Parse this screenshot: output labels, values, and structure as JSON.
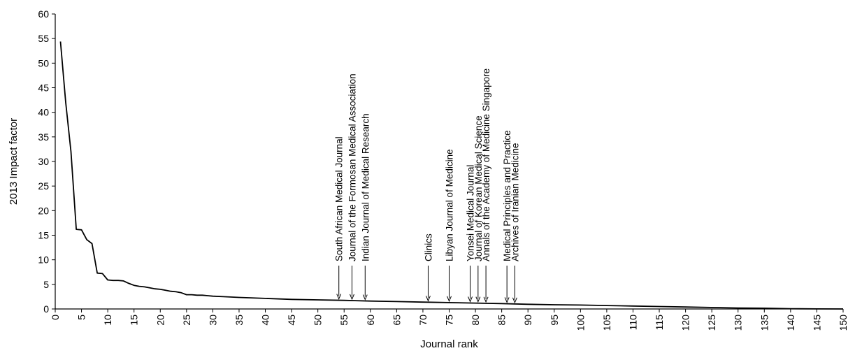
{
  "chart_data": {
    "type": "line",
    "title": "",
    "xlabel": "Journal rank",
    "ylabel": "2013 Impact factor",
    "xlim": [
      0,
      150
    ],
    "ylim": [
      0,
      60
    ],
    "xticks": [
      0,
      5,
      10,
      15,
      20,
      25,
      30,
      35,
      40,
      45,
      50,
      55,
      60,
      65,
      70,
      75,
      80,
      85,
      90,
      95,
      100,
      105,
      110,
      115,
      120,
      125,
      130,
      135,
      140,
      145,
      150
    ],
    "xtick_labels": [
      "0",
      "5",
      "10",
      "15",
      "20",
      "25",
      "30",
      "35",
      "40",
      "45",
      "50",
      "55",
      "60",
      "65",
      "70",
      "75",
      "80",
      "85",
      "90",
      "95",
      "100",
      "105",
      "110",
      "115",
      "120",
      "125",
      "130",
      "135",
      "140",
      "145",
      "150"
    ],
    "yticks": [
      0,
      5,
      10,
      15,
      20,
      25,
      30,
      35,
      40,
      45,
      50,
      55,
      60
    ],
    "ytick_labels": [
      "0",
      "5",
      "10",
      "15",
      "20",
      "25",
      "30",
      "35",
      "40",
      "45",
      "50",
      "55",
      "60"
    ],
    "grid": false,
    "series": [
      {
        "color": "#000000",
        "points": [
          [
            1,
            54.4
          ],
          [
            2,
            42
          ],
          [
            3,
            32
          ],
          [
            4,
            16.2
          ],
          [
            5,
            16.1
          ],
          [
            6,
            14.1
          ],
          [
            7,
            13.3
          ],
          [
            8,
            7.3
          ],
          [
            9,
            7.2
          ],
          [
            10,
            5.9
          ],
          [
            11,
            5.8
          ],
          [
            12,
            5.8
          ],
          [
            13,
            5.7
          ],
          [
            14,
            5.2
          ],
          [
            15,
            4.8
          ],
          [
            16,
            4.6
          ],
          [
            17,
            4.5
          ],
          [
            18,
            4.3
          ],
          [
            19,
            4.1
          ],
          [
            20,
            4.0
          ],
          [
            21,
            3.8
          ],
          [
            22,
            3.6
          ],
          [
            23,
            3.5
          ],
          [
            24,
            3.3
          ],
          [
            25,
            2.9
          ],
          [
            26,
            2.9
          ],
          [
            27,
            2.8
          ],
          [
            28,
            2.8
          ],
          [
            29,
            2.7
          ],
          [
            30,
            2.6
          ],
          [
            32,
            2.5
          ],
          [
            35,
            2.35
          ],
          [
            40,
            2.15
          ],
          [
            45,
            1.95
          ],
          [
            50,
            1.85
          ],
          [
            55,
            1.75
          ],
          [
            60,
            1.6
          ],
          [
            65,
            1.5
          ],
          [
            70,
            1.4
          ],
          [
            75,
            1.3
          ],
          [
            80,
            1.2
          ],
          [
            85,
            1.1
          ],
          [
            90,
            0.95
          ],
          [
            95,
            0.85
          ],
          [
            100,
            0.8
          ],
          [
            105,
            0.7
          ],
          [
            110,
            0.6
          ],
          [
            115,
            0.5
          ],
          [
            120,
            0.4
          ],
          [
            125,
            0.3
          ],
          [
            130,
            0.2
          ],
          [
            135,
            0.15
          ],
          [
            140,
            0.05
          ],
          [
            145,
            0.02
          ],
          [
            150,
            0.0
          ]
        ]
      }
    ],
    "annotations": [
      {
        "label": "South African Medical Journal",
        "x": 54
      },
      {
        "label": "Journal of the Formosan Medical Association",
        "x": 56.5
      },
      {
        "label": "Indian Journal of Medical Research",
        "x": 59
      },
      {
        "label": "Clinics",
        "x": 71
      },
      {
        "label": "Libyan Journal of Medicine",
        "x": 75
      },
      {
        "label": "Yonsei Medical Journal",
        "x": 79
      },
      {
        "label": "Journal of Korean Medical Science",
        "x": 80.5
      },
      {
        "label": "Annals of the Academy of Medicine Singapore",
        "x": 82
      },
      {
        "label": "Medical Principles and Practice",
        "x": 86
      },
      {
        "label": "Archives of Iranian Medicine",
        "x": 87.5
      }
    ]
  }
}
